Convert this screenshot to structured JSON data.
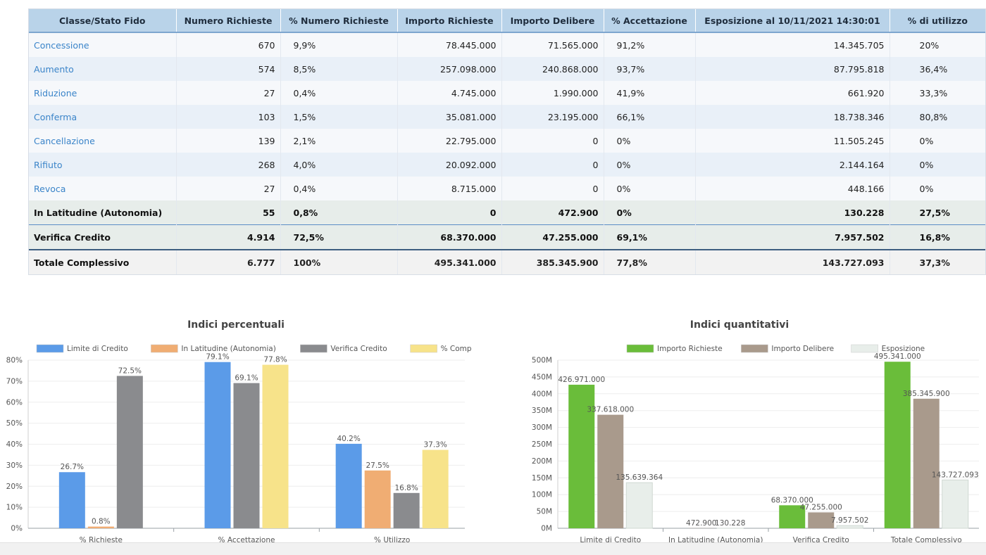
{
  "table": {
    "headers": [
      "Classe/Stato Fido",
      "Numero Richieste",
      "% Numero Richieste",
      "Importo Richieste",
      "Importo Delibere",
      "% Accettazione",
      "Esposizione al 10/11/2021 14:30:01",
      "% di utilizzo"
    ],
    "rows": [
      {
        "name": "Concessione",
        "num": "670",
        "pct_num": "9,9%",
        "imp_rich": "78.445.000",
        "imp_del": "71.565.000",
        "acc": "91,2%",
        "esp": "14.345.705",
        "util": "20%"
      },
      {
        "name": "Aumento",
        "num": "574",
        "pct_num": "8,5%",
        "imp_rich": "257.098.000",
        "imp_del": "240.868.000",
        "acc": "93,7%",
        "esp": "87.795.818",
        "util": "36,4%"
      },
      {
        "name": "Riduzione",
        "num": "27",
        "pct_num": "0,4%",
        "imp_rich": "4.745.000",
        "imp_del": "1.990.000",
        "acc": "41,9%",
        "esp": "661.920",
        "util": "33,3%"
      },
      {
        "name": "Conferma",
        "num": "103",
        "pct_num": "1,5%",
        "imp_rich": "35.081.000",
        "imp_del": "23.195.000",
        "acc": "66,1%",
        "esp": "18.738.346",
        "util": "80,8%"
      },
      {
        "name": "Cancellazione",
        "num": "139",
        "pct_num": "2,1%",
        "imp_rich": "22.795.000",
        "imp_del": "0",
        "acc": "0%",
        "esp": "11.505.245",
        "util": "0%"
      },
      {
        "name": "Rifiuto",
        "num": "268",
        "pct_num": "4,0%",
        "imp_rich": "20.092.000",
        "imp_del": "0",
        "acc": "0%",
        "esp": "2.144.164",
        "util": "0%"
      },
      {
        "name": "Revoca",
        "num": "27",
        "pct_num": "0,4%",
        "imp_rich": "8.715.000",
        "imp_del": "0",
        "acc": "0%",
        "esp": "448.166",
        "util": "0%"
      }
    ],
    "latitudine": {
      "name": "In Latitudine (Autonomia)",
      "num": "55",
      "pct_num": "0,8%",
      "imp_rich": "0",
      "imp_del": "472.900",
      "acc": "0%",
      "esp": "130.228",
      "util": "27,5%"
    },
    "verifica": {
      "name": "Verifica Credito",
      "num": "4.914",
      "pct_num": "72,5%",
      "imp_rich": "68.370.000",
      "imp_del": "47.255.000",
      "acc": "69,1%",
      "esp": "7.957.502",
      "util": "16,8%"
    },
    "totale": {
      "name": "Totale Complessivo",
      "num": "6.777",
      "pct_num": "100%",
      "imp_rich": "495.341.000",
      "imp_del": "385.345.900",
      "acc": "77,8%",
      "esp": "143.727.093",
      "util": "37,3%"
    }
  },
  "chart_data": [
    {
      "type": "bar",
      "title": "Indici percentuali",
      "categories": [
        "% Richieste",
        "% Accettazione",
        "% Utilizzo"
      ],
      "series": [
        {
          "name": "Limite di Credito",
          "color": "#5b9be8",
          "values": [
            26.7,
            79.1,
            40.2
          ],
          "labels": [
            "26.7%",
            "79.1%",
            "40.2%"
          ]
        },
        {
          "name": "In Latitudine (Autonomia)",
          "color": "#f0ad73",
          "values": [
            0.8,
            0,
            27.5
          ],
          "labels": [
            "0.8%",
            "",
            "27.5%"
          ]
        },
        {
          "name": "Verifica Credito",
          "color": "#8a8b8e",
          "values": [
            72.5,
            69.1,
            16.8
          ],
          "labels": [
            "72.5%",
            "69.1%",
            "16.8%"
          ]
        },
        {
          "name": "% Complessiva",
          "color": "#f7e38a",
          "values": [
            0,
            77.8,
            37.3
          ],
          "labels": [
            "",
            "77.8%",
            "37.3%"
          ]
        }
      ],
      "ylim": [
        0,
        80
      ],
      "yticks": [
        "0%",
        "10%",
        "20%",
        "30%",
        "40%",
        "50%",
        "60%",
        "70%",
        "80%"
      ],
      "legend": "top"
    },
    {
      "type": "bar",
      "title": "Indici quantitativi",
      "categories": [
        "Limite di Credito",
        "In Latitudine (Autonomia)",
        "Verifica Credito",
        "Totale Complessivo"
      ],
      "series": [
        {
          "name": "Importo Richieste",
          "color": "#6abd3a",
          "values": [
            426971000,
            0,
            68370000,
            495341000
          ],
          "labels": [
            "426.971.000",
            "",
            "68.370.000",
            "495.341.000"
          ]
        },
        {
          "name": "Importo Delibere",
          "color": "#a99a8c",
          "values": [
            337618000,
            472900,
            47255000,
            385345900
          ],
          "labels": [
            "337.618.000",
            "472.900",
            "47.255.000",
            "385.345.900"
          ]
        },
        {
          "name": "Esposizione",
          "color": "#e8eeea",
          "values": [
            135639364,
            130228,
            7957502,
            143727093
          ],
          "labels": [
            "135.639.364",
            "130.228",
            "7.957.502",
            "143.727.093"
          ]
        }
      ],
      "ylim": [
        0,
        500000000
      ],
      "yticks": [
        "0M",
        "50M",
        "100M",
        "150M",
        "200M",
        "250M",
        "300M",
        "350M",
        "400M",
        "450M",
        "500M"
      ],
      "legend": "top"
    }
  ]
}
